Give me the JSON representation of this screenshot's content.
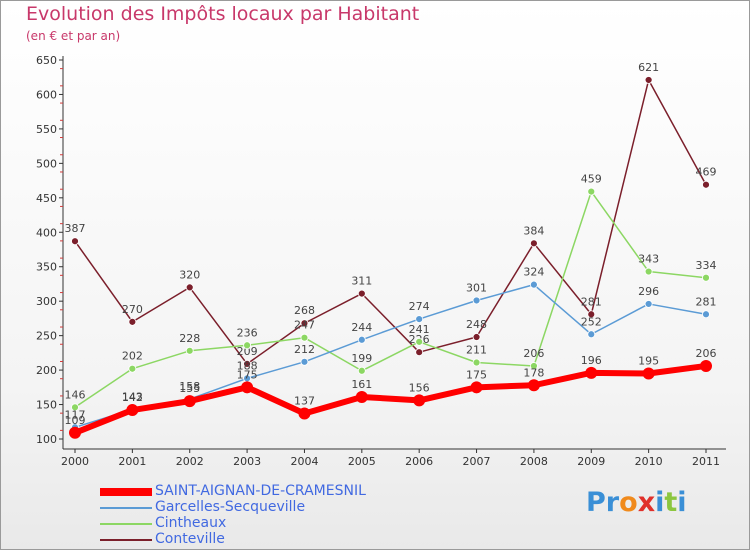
{
  "title": "Evolution des Impôts locaux par Habitant",
  "subtitle": "(en € et par an)",
  "logo": {
    "text": "Proxiti",
    "letter_colors": [
      "#3a8fd6",
      "#3a8fd6",
      "#f08a1c",
      "#e0302a",
      "#3a8fd6",
      "#8cc63f",
      "#3a8fd6"
    ]
  },
  "chart_data": {
    "type": "line",
    "x": [
      "2000",
      "2001",
      "2002",
      "2003",
      "2004",
      "2005",
      "2006",
      "2007",
      "2008",
      "2009",
      "2010",
      "2011"
    ],
    "ylim": [
      100,
      650
    ],
    "yticks": [
      100,
      150,
      200,
      250,
      300,
      350,
      400,
      450,
      500,
      550,
      600,
      650
    ],
    "grid": false,
    "legend_position": "bottom-left",
    "series": [
      {
        "name": "Conteville",
        "color": "#7b1f2b",
        "values": [
          387,
          270,
          320,
          209,
          268,
          311,
          226,
          248,
          384,
          281,
          621,
          469
        ],
        "labels": [
          "387",
          "270",
          "320",
          "209",
          "268",
          "311",
          "226",
          "248",
          "384",
          "281",
          "621",
          "469"
        ]
      },
      {
        "name": "Cintheaux",
        "color": "#8cd763",
        "values": [
          146,
          202,
          228,
          236,
          247,
          199,
          241,
          211,
          206,
          459,
          343,
          334
        ],
        "labels": [
          "146",
          "202",
          "228",
          "236",
          "247",
          "199",
          "241",
          "211",
          "206",
          "459",
          "343",
          "334"
        ]
      },
      {
        "name": "Garcelles-Secqueville",
        "color": "#5b9bd5",
        "values": [
          117,
          143,
          158,
          188,
          212,
          244,
          274,
          301,
          324,
          252,
          296,
          281
        ],
        "labels": [
          "117",
          "143",
          "158",
          "188",
          "212",
          "244",
          "274",
          "301",
          "324",
          "252",
          "296",
          "281"
        ]
      },
      {
        "name": "SAINT-AIGNAN-DE-CRAMESNIL",
        "color": "#ff0000",
        "values": [
          109,
          142,
          155,
          175,
          137,
          161,
          156,
          175,
          178,
          196,
          195,
          206
        ],
        "labels": [
          "109",
          "142",
          "155",
          "175",
          "137",
          "161",
          "156",
          "175",
          "178",
          "196",
          "195",
          "206"
        ]
      }
    ],
    "legend_order": [
      "SAINT-AIGNAN-DE-CRAMESNIL",
      "Garcelles-Secqueville",
      "Cintheaux",
      "Conteville"
    ]
  }
}
